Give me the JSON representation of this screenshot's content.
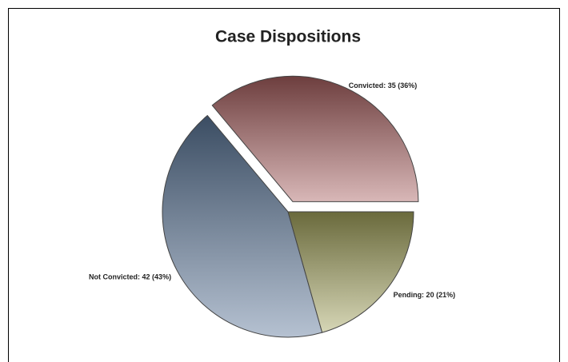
{
  "chart_data": {
    "type": "pie",
    "title": "Case Dispositions",
    "categories": [
      "Convicted",
      "Not Convicted",
      "Pending"
    ],
    "values": [
      35,
      42,
      20
    ],
    "value_labels": [
      "Convicted: 35 (36%)",
      "Not Convicted: 42 (43%)",
      "Pending: 20 (21%)"
    ],
    "colors": [
      "#a85f5f",
      "#5b7698",
      "#a3a35c"
    ],
    "exploded": [
      true,
      false,
      false
    ]
  }
}
